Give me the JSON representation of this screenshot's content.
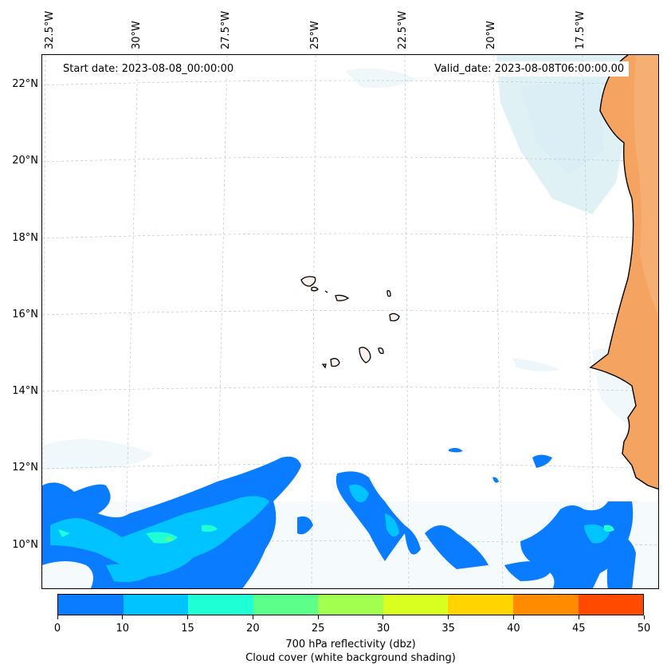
{
  "map": {
    "start_date": "Start date: 2023-08-08_00:00:00",
    "valid_date": "Valid_date: 2023-08-08T06:00:00.00",
    "lon_labels": [
      "32.5°W",
      "30°W",
      "27.5°W",
      "25°W",
      "22.5°W",
      "20°W",
      "17.5°W"
    ],
    "lat_labels": [
      "22°N",
      "20°N",
      "18°N",
      "16°N",
      "14°N",
      "12°N",
      "10°N"
    ],
    "land_color": "#f4a460",
    "cloud_color": "#d6ecf3",
    "coast_color": "#000000",
    "grid": true
  },
  "colorbar": {
    "ticks": [
      "0",
      "10",
      "15",
      "20",
      "25",
      "30",
      "35",
      "40",
      "45",
      "50"
    ],
    "colors": [
      "#0a7cff",
      "#00c3ff",
      "#1fffd5",
      "#5cff8a",
      "#a2ff4f",
      "#d8ff1f",
      "#ffd400",
      "#ff8c00",
      "#ff4a00"
    ],
    "label": "700 hPa reflectivity (dbz)",
    "sublabel": "Cloud cover (white background shading)"
  }
}
